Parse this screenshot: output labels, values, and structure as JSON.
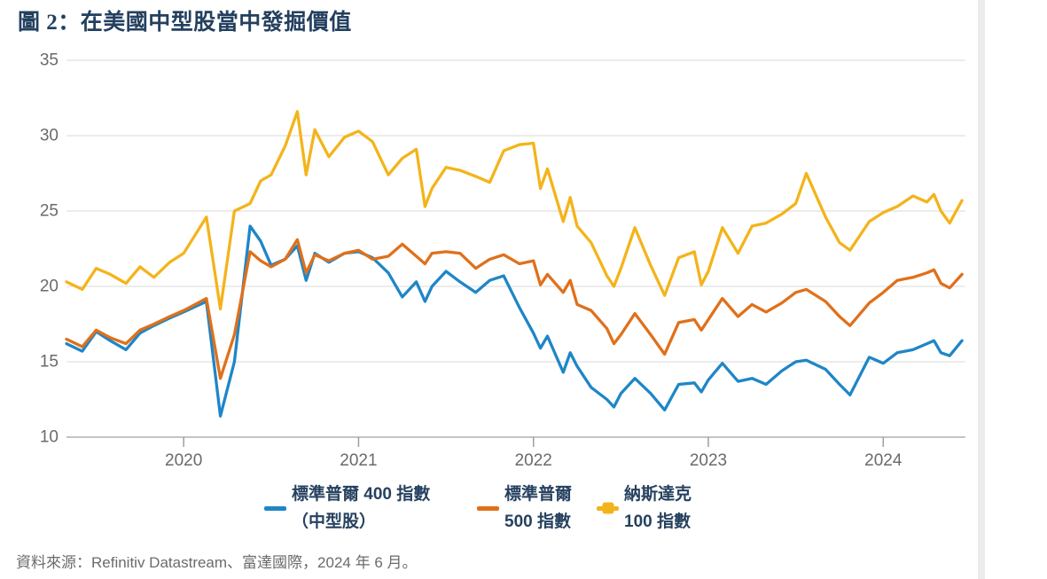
{
  "page": {
    "title": "圖 2：在美國中型股當中發掘價值",
    "source": "資料來源：Refinitiv Datastream、富達國際，2024 年 6 月。"
  },
  "colors": {
    "title_text": "#24405F",
    "legend_text": "#26415F",
    "axis_text": "#6A6A6A",
    "source_text": "#6B6B6B",
    "gridline": "#D9D9D9",
    "axis_line": "#B0B0B0",
    "tick": "#9E9E9E",
    "page_edge": "#ECECEC",
    "sp400_blue": "#1E86C7",
    "sp500_orange": "#E0701A",
    "nasdaq_yellow": "#F3B41B"
  },
  "legend": {
    "items": [
      {
        "label_line1": "標準普爾 400 指數",
        "label_line2": "（中型股）",
        "color": "#1E86C7",
        "marker": "line"
      },
      {
        "label_line1": "標準普爾",
        "label_line2": "500 指數",
        "color": "#E0701A",
        "marker": "line"
      },
      {
        "label_line1": "納斯達克",
        "label_line2": "100 指數",
        "color": "#F3B41B",
        "marker": "line-square"
      }
    ]
  },
  "chart_data": {
    "type": "line",
    "title": "圖 2：在美國中型股當中發掘價值",
    "xlabel": "",
    "ylabel": "",
    "grid": true,
    "legend_position": "bottom",
    "xlim": [
      2019.33,
      2024.47
    ],
    "ylim": [
      10,
      35
    ],
    "yticks": [
      10,
      15,
      20,
      25,
      30,
      35
    ],
    "xticks": [
      2020,
      2021,
      2022,
      2023,
      2024
    ],
    "xtick_labels": [
      "2020",
      "2021",
      "2022",
      "2023",
      "2024"
    ],
    "x": [
      2019.33,
      2019.42,
      2019.5,
      2019.58,
      2019.67,
      2019.75,
      2019.83,
      2019.92,
      2020.0,
      2020.13,
      2020.21,
      2020.29,
      2020.38,
      2020.44,
      2020.5,
      2020.58,
      2020.65,
      2020.7,
      2020.75,
      2020.83,
      2020.92,
      2021.0,
      2021.08,
      2021.17,
      2021.25,
      2021.33,
      2021.38,
      2021.42,
      2021.5,
      2021.58,
      2021.67,
      2021.75,
      2021.83,
      2021.92,
      2022.0,
      2022.04,
      2022.08,
      2022.17,
      2022.21,
      2022.25,
      2022.33,
      2022.42,
      2022.46,
      2022.5,
      2022.58,
      2022.67,
      2022.75,
      2022.83,
      2022.92,
      2022.96,
      2023.0,
      2023.08,
      2023.17,
      2023.25,
      2023.33,
      2023.42,
      2023.5,
      2023.56,
      2023.67,
      2023.75,
      2023.81,
      2023.92,
      2024.0,
      2024.08,
      2024.17,
      2024.25,
      2024.29,
      2024.33,
      2024.38,
      2024.45
    ],
    "series": [
      {
        "name": "標準普爾 400 指數（中型股）",
        "color": "#1E86C7",
        "values": [
          16.2,
          15.7,
          17.0,
          16.4,
          15.8,
          16.9,
          17.4,
          17.9,
          18.3,
          19.0,
          11.4,
          15.0,
          24.0,
          23.0,
          21.4,
          21.8,
          22.7,
          20.4,
          22.2,
          21.6,
          22.2,
          22.3,
          21.9,
          20.9,
          19.3,
          20.3,
          19.0,
          20.0,
          21.0,
          20.3,
          19.6,
          20.4,
          20.7,
          18.6,
          16.9,
          15.9,
          16.7,
          14.3,
          15.6,
          14.7,
          13.3,
          12.5,
          12.0,
          12.9,
          13.9,
          12.9,
          11.8,
          13.5,
          13.6,
          13.0,
          13.8,
          14.9,
          13.7,
          13.9,
          13.5,
          14.4,
          15.0,
          15.1,
          14.5,
          13.5,
          12.8,
          15.3,
          14.9,
          15.6,
          15.8,
          16.2,
          16.4,
          15.6,
          15.4,
          16.4
        ]
      },
      {
        "name": "標準普爾 500 指數",
        "color": "#E0701A",
        "values": [
          16.5,
          16.0,
          17.1,
          16.6,
          16.2,
          17.1,
          17.5,
          18.0,
          18.4,
          19.2,
          13.9,
          16.8,
          22.3,
          21.7,
          21.3,
          21.8,
          23.1,
          20.9,
          22.1,
          21.7,
          22.2,
          22.4,
          21.8,
          22.0,
          22.8,
          22.0,
          21.5,
          22.2,
          22.3,
          22.2,
          21.2,
          21.8,
          22.1,
          21.5,
          21.7,
          20.1,
          20.8,
          19.6,
          20.4,
          18.8,
          18.4,
          17.2,
          16.2,
          16.8,
          18.2,
          16.8,
          15.5,
          17.6,
          17.8,
          17.1,
          17.8,
          19.2,
          18.0,
          18.8,
          18.3,
          18.9,
          19.6,
          19.8,
          19.0,
          18.0,
          17.4,
          18.9,
          19.6,
          20.4,
          20.6,
          20.9,
          21.1,
          20.2,
          19.9,
          20.8
        ]
      },
      {
        "name": "納斯達克 100 指數",
        "color": "#F3B41B",
        "values": [
          20.3,
          19.8,
          21.2,
          20.8,
          20.2,
          21.3,
          20.6,
          21.6,
          22.2,
          24.6,
          18.5,
          25.0,
          25.5,
          27.0,
          27.4,
          29.3,
          31.6,
          27.4,
          30.4,
          28.6,
          29.9,
          30.3,
          29.6,
          27.4,
          28.5,
          29.1,
          25.3,
          26.5,
          27.9,
          27.7,
          27.3,
          26.9,
          29.0,
          29.4,
          29.5,
          26.5,
          27.8,
          24.3,
          25.9,
          24.0,
          22.9,
          20.7,
          20.0,
          21.2,
          23.9,
          21.4,
          19.4,
          21.9,
          22.3,
          20.1,
          21.0,
          23.9,
          22.2,
          24.0,
          24.2,
          24.8,
          25.5,
          27.5,
          24.6,
          22.9,
          22.4,
          24.3,
          24.9,
          25.3,
          26.0,
          25.6,
          26.1,
          25.0,
          24.2,
          25.7
        ]
      }
    ]
  }
}
